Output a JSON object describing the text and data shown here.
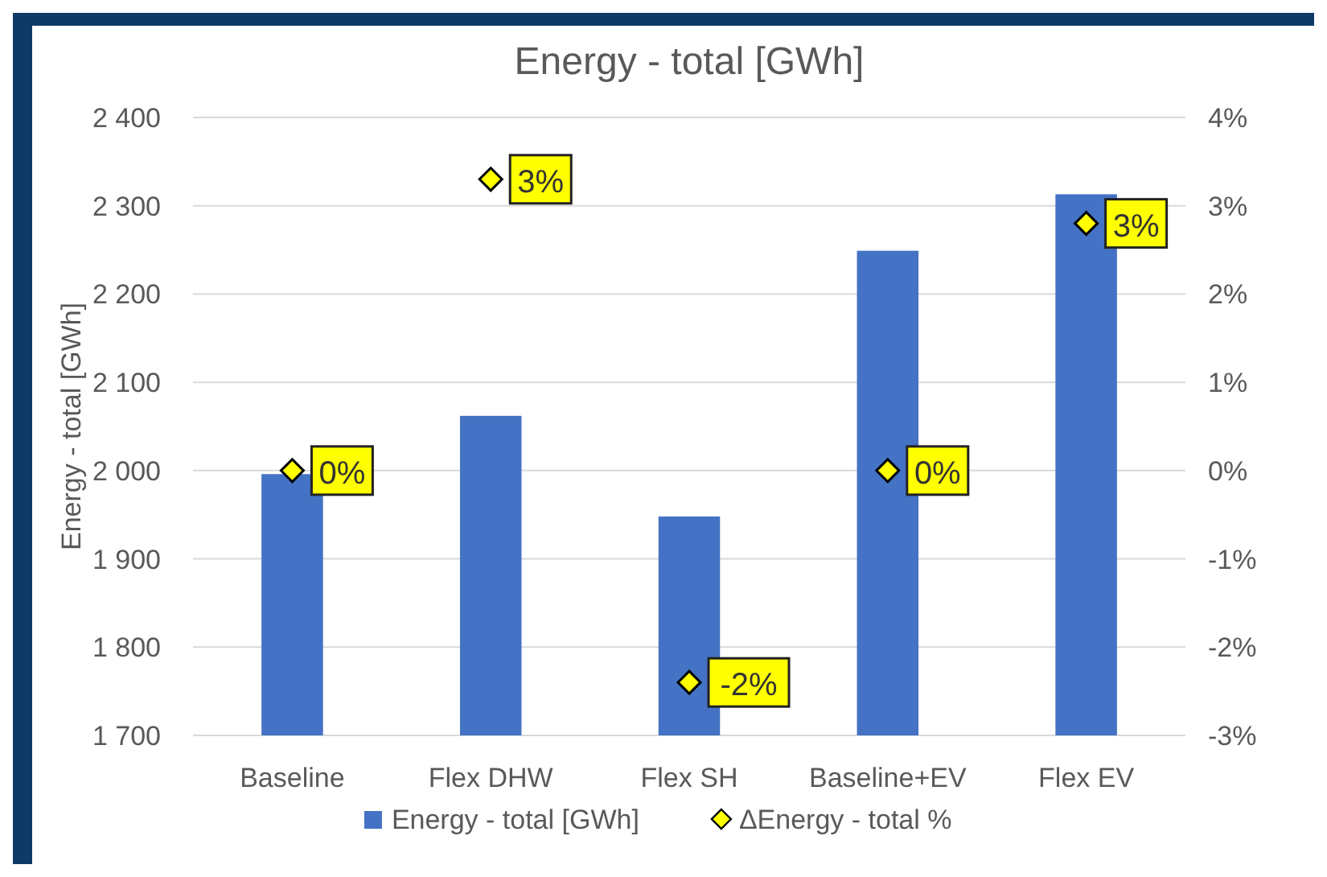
{
  "chart_data": {
    "type": "bar",
    "title": "Energy - total [GWh]",
    "ylabel": "Energy - total [GWh]",
    "categories": [
      "Baseline",
      "Flex DHW",
      "Flex SH",
      "Baseline+EV",
      "Flex EV"
    ],
    "series": [
      {
        "name": "Energy - total [GWh]",
        "color": "#4472c4",
        "values": [
          1996,
          2062,
          1948,
          2249,
          2313
        ]
      },
      {
        "name": "ΔEnergy - total %",
        "type": "scatter",
        "axis": "y2",
        "color": "#ffff00",
        "marker": "diamond",
        "values": [
          0,
          3.3,
          -2.4,
          0,
          2.8
        ],
        "value_labels": [
          "0%",
          "3%",
          "-2%",
          "0%",
          "3%"
        ]
      }
    ],
    "ylim": [
      1700,
      2400
    ],
    "yticks": [
      {
        "value": 1700,
        "label": "1 700"
      },
      {
        "value": 1800,
        "label": "1 800"
      },
      {
        "value": 1900,
        "label": "1 900"
      },
      {
        "value": 2000,
        "label": "2 000"
      },
      {
        "value": 2100,
        "label": "2 100"
      },
      {
        "value": 2200,
        "label": "2 200"
      },
      {
        "value": 2300,
        "label": "2 300"
      },
      {
        "value": 2400,
        "label": "2 400"
      }
    ],
    "y2lim": [
      -3,
      4
    ],
    "y2ticks": [
      {
        "value": -3,
        "label": "-3%"
      },
      {
        "value": -2,
        "label": "-2%"
      },
      {
        "value": -1,
        "label": "-1%"
      },
      {
        "value": 0,
        "label": "0%"
      },
      {
        "value": 1,
        "label": "1%"
      },
      {
        "value": 2,
        "label": "2%"
      },
      {
        "value": 3,
        "label": "3%"
      },
      {
        "value": 4,
        "label": "4%"
      }
    ],
    "grid": "y",
    "legend": "bottom"
  }
}
